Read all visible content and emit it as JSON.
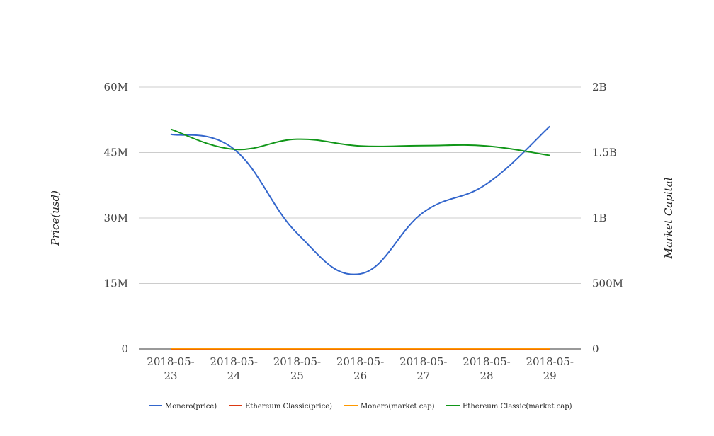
{
  "chart_data": {
    "type": "line",
    "title": "",
    "x": [
      "2018-05-23",
      "2018-05-24",
      "2018-05-25",
      "2018-05-26",
      "2018-05-27",
      "2018-05-28",
      "2018-05-29"
    ],
    "x_tick_lines": [
      [
        "2018-05-",
        "23"
      ],
      [
        "2018-05-",
        "24"
      ],
      [
        "2018-05-",
        "25"
      ],
      [
        "2018-05-",
        "26"
      ],
      [
        "2018-05-",
        "27"
      ],
      [
        "2018-05-",
        "28"
      ],
      [
        "2018-05-",
        "29"
      ]
    ],
    "y_left": {
      "label": "Price(usd)",
      "range": [
        0,
        60000000
      ],
      "ticks": [
        0,
        15000000,
        30000000,
        45000000,
        60000000
      ],
      "tick_labels": [
        "0",
        "15M",
        "30M",
        "45M",
        "60M"
      ]
    },
    "y_right": {
      "label": "Market Capital",
      "range": [
        0,
        2000000000
      ],
      "ticks": [
        0,
        500000000,
        1000000000,
        1500000000,
        2000000000
      ],
      "tick_labels": [
        "0",
        "500M",
        "1B",
        "1.5B",
        "2B"
      ]
    },
    "grid": true,
    "legend_position": "bottom",
    "series": [
      {
        "name": "Monero(price)",
        "axis": "left",
        "color": "#3366cc",
        "values": [
          49200000,
          45800000,
          26500000,
          17200000,
          31300000,
          37800000,
          51000000
        ]
      },
      {
        "name": "Ethereum Classic(price)",
        "axis": "left",
        "color": "#dc3912",
        "values": [
          18,
          17,
          15,
          14,
          15,
          15,
          14
        ]
      },
      {
        "name": "Monero(market cap)",
        "axis": "right",
        "color": "#ff9900",
        "values": [
          2500000,
          2300000,
          1900000,
          1800000,
          1900000,
          2000000,
          2200000
        ]
      },
      {
        "name": "Ethereum Classic(market cap)",
        "axis": "right",
        "color": "#109618",
        "values": [
          1678000000,
          1525000000,
          1602000000,
          1550000000,
          1553000000,
          1550000000,
          1478000000
        ]
      }
    ]
  }
}
